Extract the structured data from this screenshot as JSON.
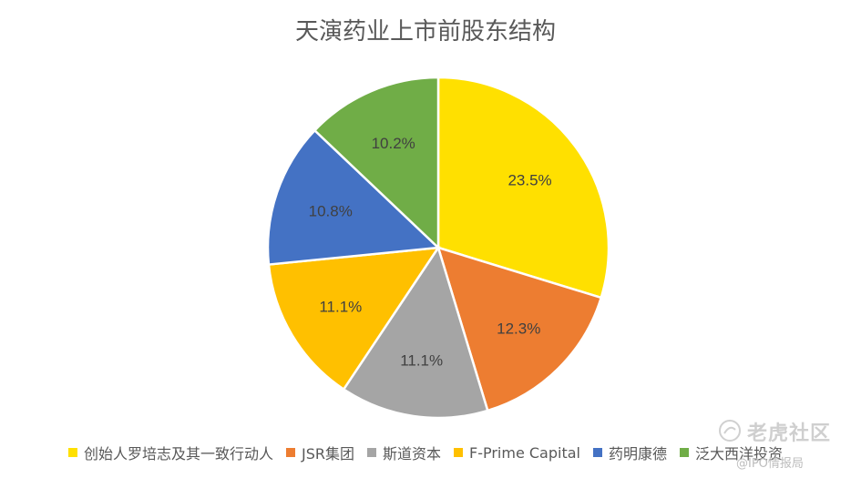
{
  "chart_data": {
    "type": "pie",
    "title": "天演药业上市前股东结构",
    "categories": [
      "创始人罗培志及其一致行动人",
      "JSR集团",
      "斯道资本",
      "F-Prime Capital",
      "药明康德",
      "泛大西洋投资"
    ],
    "values": [
      23.5,
      12.3,
      11.1,
      11.1,
      10.8,
      10.2
    ],
    "labels": [
      "23.5%",
      "12.3%",
      "11.1%",
      "11.1%",
      "10.8%",
      "10.2%"
    ],
    "colors": [
      "#FFE000",
      "#ED7D31",
      "#A5A5A5",
      "#FFC000",
      "#4472C4",
      "#70AD47"
    ],
    "legend_position": "bottom",
    "start_angle_deg": 0,
    "direction": "clockwise"
  },
  "watermark": {
    "brand": "老虎社区",
    "handle": "@IPO情报局"
  }
}
